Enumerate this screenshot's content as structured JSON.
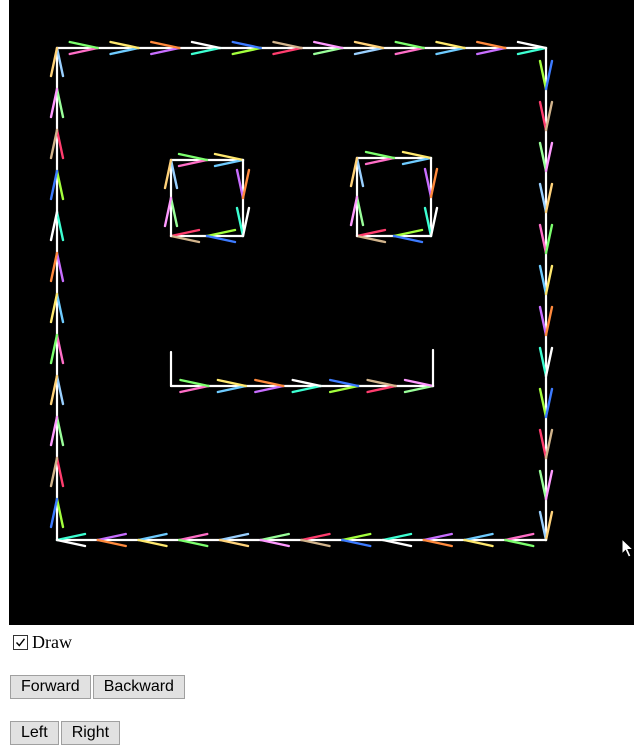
{
  "controls": {
    "draw_label": "Draw",
    "draw_checked": true,
    "forward_label": "Forward",
    "backward_label": "Backward",
    "left_label": "Left",
    "right_label": "Right"
  },
  "drawing": {
    "background": "#000000",
    "path_color": "#ffffff",
    "shapes": [
      "outer-square",
      "left-eye-square",
      "right-eye-square",
      "mouth-line"
    ]
  }
}
